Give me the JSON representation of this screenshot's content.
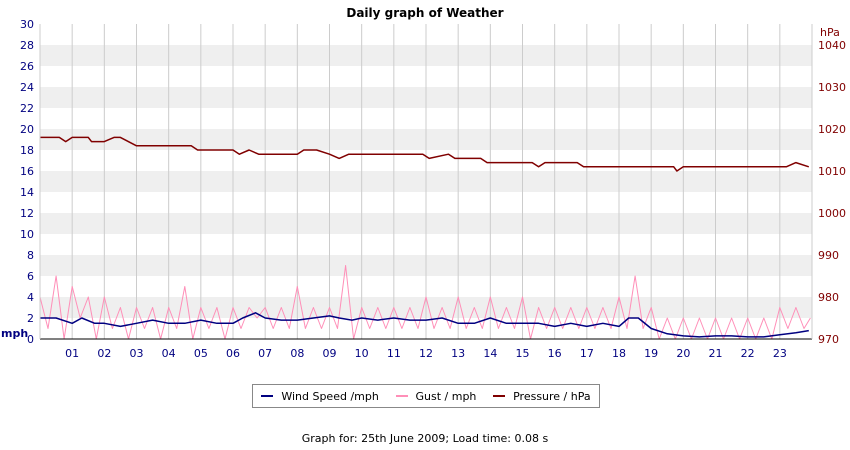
{
  "chart_data": {
    "type": "line",
    "title": "Daily graph of Weather",
    "left_axis": {
      "unit": "mph",
      "ylim": [
        0,
        30
      ],
      "ticks": [
        0,
        2,
        4,
        6,
        8,
        10,
        12,
        14,
        16,
        18,
        20,
        22,
        24,
        26,
        28,
        30
      ]
    },
    "right_axis": {
      "unit": "hPa",
      "ylim": [
        970,
        1045
      ],
      "ticks": [
        970,
        980,
        990,
        1000,
        1010,
        1020,
        1030,
        1040
      ]
    },
    "x_ticks": [
      "01",
      "02",
      "03",
      "04",
      "05",
      "06",
      "07",
      "08",
      "09",
      "10",
      "11",
      "12",
      "13",
      "14",
      "15",
      "16",
      "17",
      "18",
      "19",
      "20",
      "21",
      "22",
      "23"
    ],
    "xlim": [
      0,
      24
    ],
    "series": [
      {
        "name": "Wind Speed /mph",
        "color": "#000080",
        "axis": "left",
        "x": [
          0,
          0.5,
          1,
          1.3,
          1.7,
          2,
          2.5,
          3,
          3.5,
          4,
          4.5,
          5,
          5.5,
          6,
          6.3,
          6.7,
          7,
          7.5,
          8,
          8.5,
          9,
          9.3,
          9.7,
          10,
          10.5,
          11,
          11.5,
          12,
          12.5,
          13,
          13.5,
          14,
          14.5,
          15,
          15.5,
          16,
          16.5,
          17,
          17.5,
          18,
          18.3,
          18.6,
          19,
          19.5,
          20,
          20.5,
          21,
          21.5,
          22,
          22.5,
          23,
          23.5,
          23.9
        ],
        "values": [
          2,
          2,
          1.5,
          2,
          1.5,
          1.5,
          1.2,
          1.5,
          1.8,
          1.5,
          1.5,
          1.8,
          1.5,
          1.5,
          2,
          2.5,
          2,
          1.8,
          1.8,
          2,
          2.2,
          2,
          1.8,
          2,
          1.8,
          2,
          1.8,
          1.8,
          2,
          1.5,
          1.5,
          2,
          1.5,
          1.5,
          1.5,
          1.2,
          1.5,
          1.2,
          1.5,
          1.2,
          2,
          2,
          1,
          0.5,
          0.3,
          0.2,
          0.3,
          0.3,
          0.2,
          0.2,
          0.4,
          0.6,
          0.8
        ]
      },
      {
        "name": "Gust / mph",
        "color": "#ff8fb8",
        "axis": "left",
        "x": [
          0,
          0.25,
          0.5,
          0.75,
          1,
          1.25,
          1.5,
          1.75,
          2,
          2.25,
          2.5,
          2.75,
          3,
          3.25,
          3.5,
          3.75,
          4,
          4.25,
          4.5,
          4.75,
          5,
          5.25,
          5.5,
          5.75,
          6,
          6.25,
          6.5,
          6.75,
          7,
          7.25,
          7.5,
          7.75,
          8,
          8.25,
          8.5,
          8.75,
          9,
          9.25,
          9.5,
          9.75,
          10,
          10.25,
          10.5,
          10.75,
          11,
          11.25,
          11.5,
          11.75,
          12,
          12.25,
          12.5,
          12.75,
          13,
          13.25,
          13.5,
          13.75,
          14,
          14.25,
          14.5,
          14.75,
          15,
          15.25,
          15.5,
          15.75,
          16,
          16.25,
          16.5,
          16.75,
          17,
          17.25,
          17.5,
          17.75,
          18,
          18.25,
          18.5,
          18.75,
          19,
          19.25,
          19.5,
          19.75,
          20,
          20.25,
          20.5,
          20.75,
          21,
          21.25,
          21.5,
          21.75,
          22,
          22.25,
          22.5,
          22.75,
          23,
          23.25,
          23.5,
          23.75,
          23.95
        ],
        "values": [
          4,
          1,
          6,
          0,
          5,
          2,
          4,
          0,
          4,
          1,
          3,
          0,
          3,
          1,
          3,
          0,
          3,
          1,
          5,
          0,
          3,
          1,
          3,
          0,
          3,
          1,
          3,
          2,
          3,
          1,
          3,
          1,
          5,
          1,
          3,
          1,
          3,
          1,
          7,
          0,
          3,
          1,
          3,
          1,
          3,
          1,
          3,
          1,
          4,
          1,
          3,
          1,
          4,
          1,
          3,
          1,
          4,
          1,
          3,
          1,
          4,
          0,
          3,
          1,
          3,
          1,
          3,
          1,
          3,
          1,
          3,
          1,
          4,
          1,
          6,
          1,
          3,
          0,
          2,
          0,
          2,
          0,
          2,
          0,
          2,
          0,
          2,
          0,
          2,
          0,
          2,
          0,
          3,
          1,
          3,
          1,
          2
        ]
      },
      {
        "name": "Pressure / hPa",
        "color": "#800000",
        "axis": "right",
        "x": [
          0,
          0.6,
          0.8,
          1,
          1.5,
          1.6,
          2,
          2.3,
          2.5,
          3,
          4,
          4.7,
          4.9,
          6,
          6.2,
          6.5,
          6.8,
          7,
          8,
          8.2,
          8.6,
          9,
          9.3,
          9.6,
          9.8,
          11,
          11.9,
          12.1,
          12.7,
          12.9,
          13.7,
          13.9,
          15.3,
          15.5,
          15.7,
          16.7,
          16.9,
          17,
          18,
          19,
          19.7,
          19.8,
          20,
          21,
          22,
          23.2,
          23.5,
          23.9
        ],
        "values": [
          1018,
          1018,
          1017,
          1018,
          1018,
          1017,
          1017,
          1018,
          1018,
          1016,
          1016,
          1016,
          1015,
          1015,
          1014,
          1015,
          1014,
          1014,
          1014,
          1015,
          1015,
          1014,
          1013,
          1014,
          1014,
          1014,
          1014,
          1013,
          1014,
          1013,
          1013,
          1012,
          1012,
          1011,
          1012,
          1012,
          1011,
          1011,
          1011,
          1011,
          1011,
          1010,
          1011,
          1011,
          1011,
          1011,
          1012,
          1011
        ]
      }
    ],
    "grid": true,
    "legend": "bottom"
  },
  "footer": {
    "text": "Graph for: 25th June 2009; Load time: 0.08 s"
  },
  "colors": {
    "band": "#efefef",
    "grid": "#cccccc",
    "left_axis": "#000080",
    "right_axis": "#800000"
  }
}
